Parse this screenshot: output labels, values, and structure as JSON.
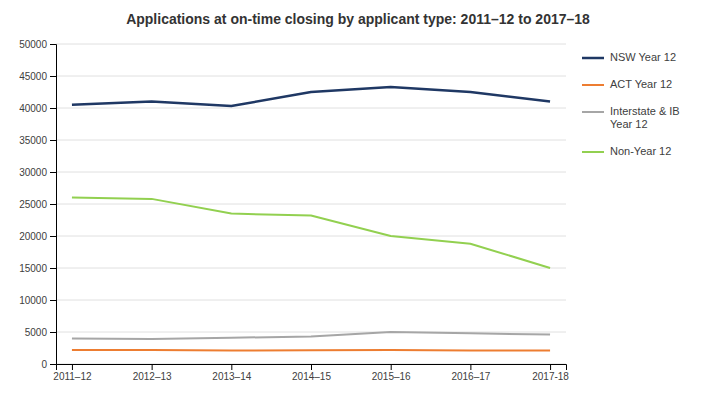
{
  "chart_data": {
    "type": "line",
    "title": "Applications at on-time closing by applicant type: 2011–12 to 2017–18",
    "categories": [
      "2011–12",
      "2012–13",
      "2013–14",
      "2014–15",
      "2015–16",
      "2016–17",
      "2017-18"
    ],
    "series": [
      {
        "name": "NSW Year 12",
        "color": "#1f3864",
        "values": [
          40500,
          41000,
          40300,
          42500,
          43300,
          42500,
          41000
        ]
      },
      {
        "name": "ACT Year 12",
        "color": "#ed7d31",
        "values": [
          2200,
          2200,
          2100,
          2150,
          2200,
          2100,
          2100
        ]
      },
      {
        "name": "Interstate & IB\nYear 12",
        "color": "#a6a6a6",
        "values": [
          4000,
          3900,
          4100,
          4300,
          5000,
          4800,
          4600
        ]
      },
      {
        "name": "Non-Year 12",
        "color": "#92d050",
        "values": [
          26000,
          25800,
          23500,
          23200,
          20000,
          18800,
          15000
        ]
      }
    ],
    "ylim": [
      0,
      50000
    ],
    "yticks": [
      0,
      5000,
      10000,
      15000,
      20000,
      25000,
      30000,
      35000,
      40000,
      45000,
      50000
    ],
    "grid": true,
    "legend": "right"
  }
}
